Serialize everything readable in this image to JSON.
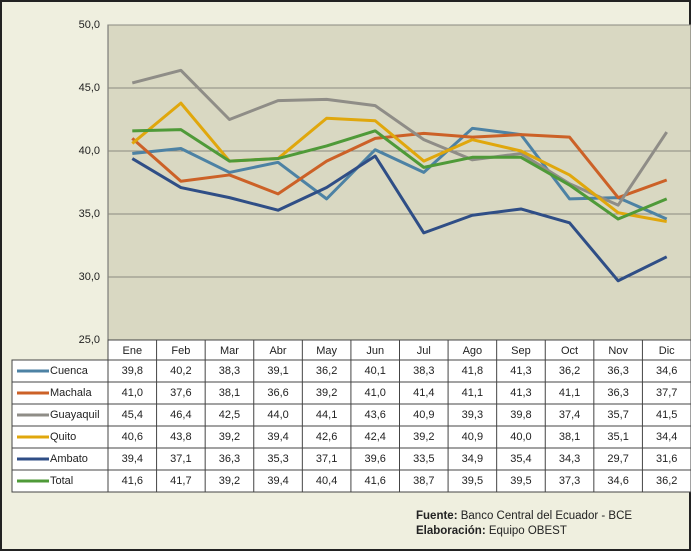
{
  "chart_data": {
    "type": "line",
    "categories": [
      "Ene",
      "Feb",
      "Mar",
      "Abr",
      "May",
      "Jun",
      "Jul",
      "Ago",
      "Sep",
      "Oct",
      "Nov",
      "Dic"
    ],
    "ylim": [
      25,
      50
    ],
    "yticks": [
      {
        "value": 25,
        "label": "25,0"
      },
      {
        "value": 30,
        "label": "30,0"
      },
      {
        "value": 35,
        "label": "35,0"
      },
      {
        "value": 40,
        "label": "40,0"
      },
      {
        "value": 45,
        "label": "45,0"
      },
      {
        "value": 50,
        "label": "50,0"
      }
    ],
    "grid": true,
    "series": [
      {
        "name": "Cuenca",
        "color": "#4d82a4",
        "values": [
          39.8,
          40.2,
          38.3,
          39.1,
          36.2,
          40.1,
          38.3,
          41.8,
          41.3,
          36.2,
          36.3,
          34.6
        ],
        "value_labels": [
          "39,8",
          "40,2",
          "38,3",
          "39,1",
          "36,2",
          "40,1",
          "38,3",
          "41,8",
          "41,3",
          "36,2",
          "36,3",
          "34,6"
        ]
      },
      {
        "name": "Machala",
        "color": "#cc6127",
        "values": [
          41.0,
          37.6,
          38.1,
          36.6,
          39.2,
          41.0,
          41.4,
          41.1,
          41.3,
          41.1,
          36.3,
          37.7
        ],
        "value_labels": [
          "41,0",
          "37,6",
          "38,1",
          "36,6",
          "39,2",
          "41,0",
          "41,4",
          "41,1",
          "41,3",
          "41,1",
          "36,3",
          "37,7"
        ]
      },
      {
        "name": "Guayaquil",
        "color": "#8f8d87",
        "values": [
          45.4,
          46.4,
          42.5,
          44.0,
          44.1,
          43.6,
          40.9,
          39.3,
          39.8,
          37.4,
          35.7,
          41.5
        ],
        "value_labels": [
          "45,4",
          "46,4",
          "42,5",
          "44,0",
          "44,1",
          "43,6",
          "40,9",
          "39,3",
          "39,8",
          "37,4",
          "35,7",
          "41,5"
        ]
      },
      {
        "name": "Quito",
        "color": "#e0a70c",
        "values": [
          40.6,
          43.8,
          39.2,
          39.4,
          42.6,
          42.4,
          39.2,
          40.9,
          40.0,
          38.1,
          35.1,
          34.4
        ],
        "value_labels": [
          "40,6",
          "43,8",
          "39,2",
          "39,4",
          "42,6",
          "42,4",
          "39,2",
          "40,9",
          "40,0",
          "38,1",
          "35,1",
          "34,4"
        ]
      },
      {
        "name": "Ambato",
        "color": "#2f4e86",
        "values": [
          39.4,
          37.1,
          36.3,
          35.3,
          37.1,
          39.6,
          33.5,
          34.9,
          35.4,
          34.3,
          29.7,
          31.6
        ],
        "value_labels": [
          "39,4",
          "37,1",
          "36,3",
          "35,3",
          "37,1",
          "39,6",
          "33,5",
          "34,9",
          "35,4",
          "34,3",
          "29,7",
          "31,6"
        ]
      },
      {
        "name": "Total",
        "color": "#4f9a38",
        "values": [
          41.6,
          41.7,
          39.2,
          39.4,
          40.4,
          41.6,
          38.7,
          39.5,
          39.5,
          37.3,
          34.6,
          36.2
        ],
        "value_labels": [
          "41,6",
          "41,7",
          "39,2",
          "39,4",
          "40,4",
          "41,6",
          "38,7",
          "39,5",
          "39,5",
          "37,3",
          "34,6",
          "36,2"
        ]
      }
    ],
    "source_label": "Fuente:",
    "source": "Banco Central del Ecuador - BCE",
    "credit_label": "Elaboración:",
    "credit": "Equipo OBEST"
  }
}
